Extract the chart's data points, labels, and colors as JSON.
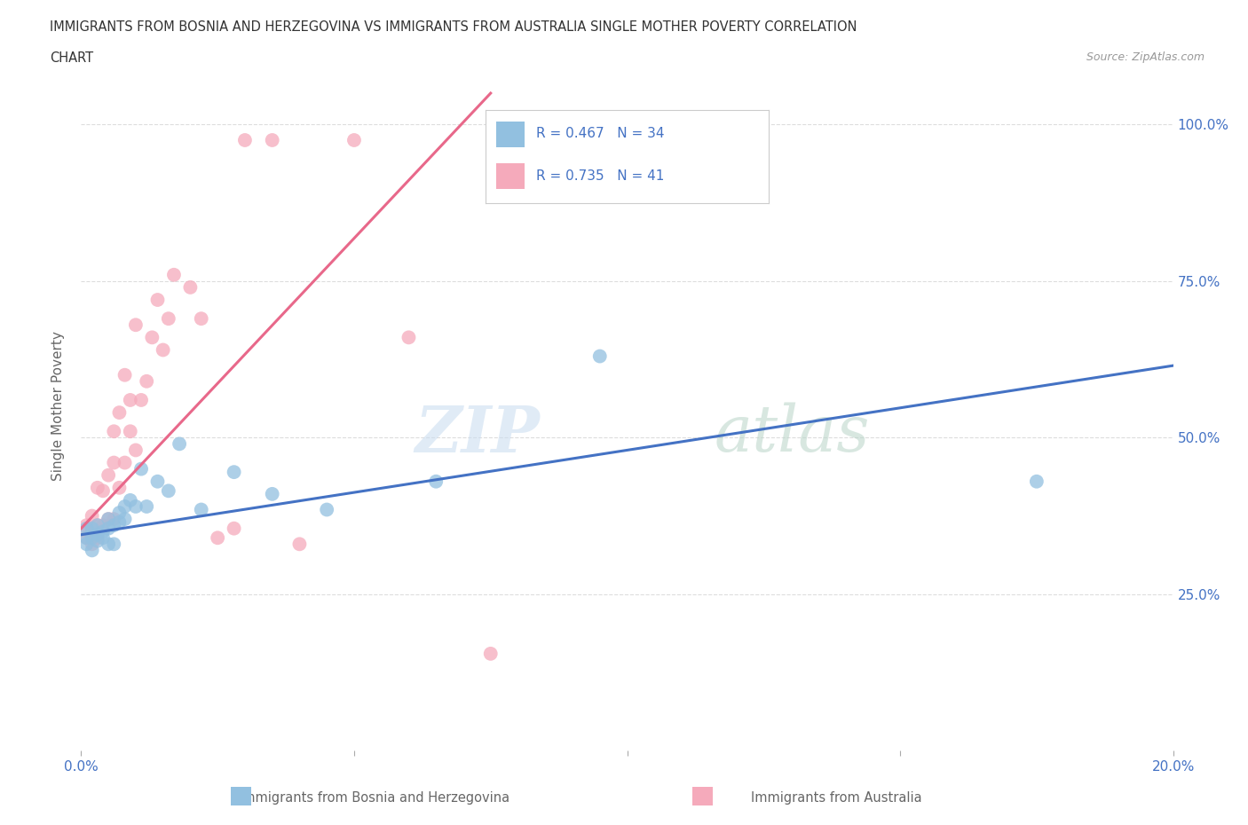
{
  "title_line1": "IMMIGRANTS FROM BOSNIA AND HERZEGOVINA VS IMMIGRANTS FROM AUSTRALIA SINGLE MOTHER POVERTY CORRELATION",
  "title_line2": "CHART",
  "source": "Source: ZipAtlas.com",
  "ylabel": "Single Mother Poverty",
  "xlim": [
    0.0,
    0.2
  ],
  "ylim": [
    0.0,
    1.1
  ],
  "xtick_vals": [
    0.0,
    0.05,
    0.1,
    0.15,
    0.2
  ],
  "xtick_labels": [
    "0.0%",
    "",
    "",
    "",
    "20.0%"
  ],
  "ytick_labels": [
    "25.0%",
    "50.0%",
    "75.0%",
    "100.0%"
  ],
  "ytick_positions": [
    0.25,
    0.5,
    0.75,
    1.0
  ],
  "legend_label1": "Immigrants from Bosnia and Herzegovina",
  "legend_label2": "Immigrants from Australia",
  "r1": 0.467,
  "n1": 34,
  "r2": 0.735,
  "n2": 41,
  "color1": "#92C0E0",
  "color2": "#F5AABB",
  "line_color1": "#4472C4",
  "line_color2": "#E8688A",
  "background_color": "#FFFFFF",
  "grid_color": "#DDDDDD",
  "title_color": "#333333",
  "axis_label_color": "#666666",
  "tick_color": "#4472C4",
  "scatter1_x": [
    0.001,
    0.001,
    0.001,
    0.002,
    0.002,
    0.002,
    0.003,
    0.003,
    0.003,
    0.004,
    0.004,
    0.005,
    0.005,
    0.005,
    0.006,
    0.006,
    0.007,
    0.007,
    0.008,
    0.008,
    0.009,
    0.01,
    0.011,
    0.012,
    0.014,
    0.016,
    0.018,
    0.022,
    0.028,
    0.035,
    0.045,
    0.065,
    0.095,
    0.175
  ],
  "scatter1_y": [
    0.355,
    0.34,
    0.33,
    0.34,
    0.355,
    0.32,
    0.345,
    0.36,
    0.335,
    0.35,
    0.34,
    0.355,
    0.33,
    0.37,
    0.36,
    0.33,
    0.365,
    0.38,
    0.37,
    0.39,
    0.4,
    0.39,
    0.45,
    0.39,
    0.43,
    0.415,
    0.49,
    0.385,
    0.445,
    0.41,
    0.385,
    0.43,
    0.63,
    0.43
  ],
  "scatter2_x": [
    0.001,
    0.001,
    0.001,
    0.002,
    0.002,
    0.002,
    0.003,
    0.003,
    0.003,
    0.004,
    0.004,
    0.005,
    0.005,
    0.006,
    0.006,
    0.006,
    0.007,
    0.007,
    0.008,
    0.008,
    0.009,
    0.009,
    0.01,
    0.01,
    0.011,
    0.012,
    0.013,
    0.014,
    0.015,
    0.016,
    0.017,
    0.02,
    0.022,
    0.025,
    0.028,
    0.03,
    0.035,
    0.04,
    0.05,
    0.06,
    0.075
  ],
  "scatter2_y": [
    0.34,
    0.35,
    0.36,
    0.33,
    0.345,
    0.375,
    0.34,
    0.36,
    0.42,
    0.36,
    0.415,
    0.37,
    0.44,
    0.37,
    0.46,
    0.51,
    0.42,
    0.54,
    0.46,
    0.6,
    0.51,
    0.56,
    0.48,
    0.68,
    0.56,
    0.59,
    0.66,
    0.72,
    0.64,
    0.69,
    0.76,
    0.74,
    0.69,
    0.34,
    0.355,
    0.975,
    0.975,
    0.33,
    0.975,
    0.66,
    0.155
  ],
  "line1_x0": 0.0,
  "line1_y0": 0.345,
  "line1_x1": 0.2,
  "line1_y1": 0.615,
  "line2_x0": 0.0,
  "line2_y0": 0.355,
  "line2_x1": 0.075,
  "line2_y1": 1.05
}
